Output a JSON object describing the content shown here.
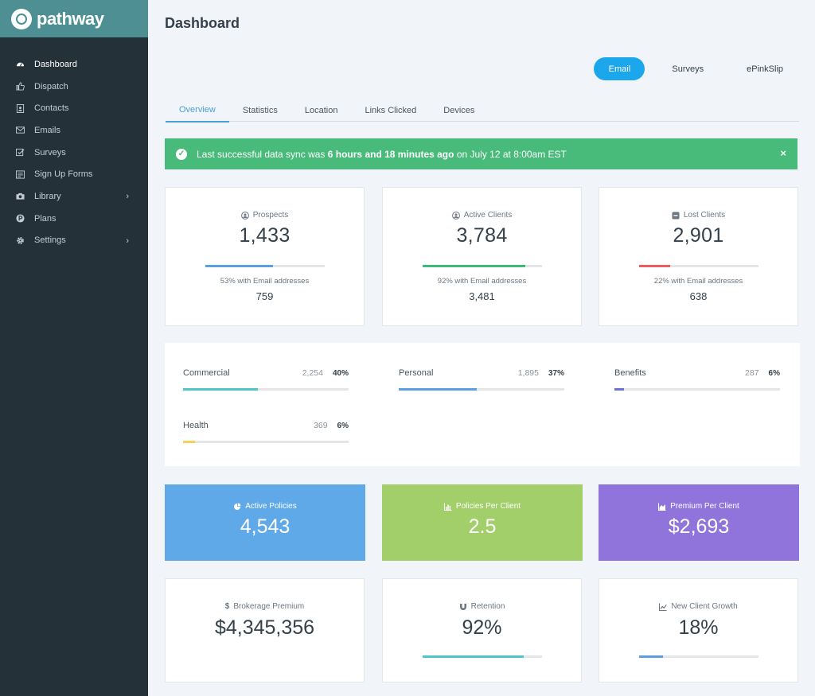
{
  "brand": {
    "name": "pathway"
  },
  "sidebar": {
    "items": [
      {
        "label": "Dashboard",
        "icon": "dashboard-icon"
      },
      {
        "label": "Dispatch",
        "icon": "thumbs-up-icon"
      },
      {
        "label": "Contacts",
        "icon": "contact-card-icon"
      },
      {
        "label": "Emails",
        "icon": "envelope-icon"
      },
      {
        "label": "Surveys",
        "icon": "checkbox-icon"
      },
      {
        "label": "Sign Up Forms",
        "icon": "form-icon"
      },
      {
        "label": "Library",
        "icon": "camera-icon"
      },
      {
        "label": "Plans",
        "icon": "plans-icon"
      },
      {
        "label": "Settings",
        "icon": "gear-icon"
      }
    ],
    "chevron": "›"
  },
  "header": {
    "title": "Dashboard"
  },
  "channel_toggle": {
    "email": "Email",
    "surveys": "Surveys",
    "epinkslip": "ePinkSlip"
  },
  "tabs": [
    "Overview",
    "Statistics",
    "Location",
    "Links Clicked",
    "Devices"
  ],
  "alert": {
    "prefix": "Last successful data sync was",
    "highlight": "6 hours and 18 minutes ago",
    "suffix": "on July 12 at 8:00am EST",
    "close": "×",
    "check": "✓"
  },
  "stats": [
    {
      "label": "Prospects",
      "value": "1,433",
      "sub": "53% with Email addresses",
      "sub_value": "759",
      "fill": 0.57,
      "color": "#5a9ee4"
    },
    {
      "label": "Active Clients",
      "value": "3,784",
      "sub": "92% with Email addresses",
      "sub_value": "3,481",
      "fill": 0.86,
      "color": "#3dbb7a"
    },
    {
      "label": "Lost Clients",
      "value": "2,901",
      "sub": "22% with Email addresses",
      "sub_value": "638",
      "fill": 0.26,
      "color": "#ee5b5b"
    }
  ],
  "segments": [
    {
      "name": "Commercial",
      "count": "2,254",
      "pct": "40%",
      "fill": 0.45,
      "color": "#4fc4c9"
    },
    {
      "name": "Personal",
      "count": "1,895",
      "pct": "37%",
      "fill": 0.47,
      "color": "#5a9ee4"
    },
    {
      "name": "Benefits",
      "count": "287",
      "pct": "6%",
      "fill": 0.06,
      "color": "#6a72d8"
    },
    {
      "name": "Health",
      "count": "369",
      "pct": "6%",
      "fill": 0.07,
      "color": "#f4d25a"
    }
  ],
  "color_cards": [
    {
      "label": "Active Policies",
      "value": "4,543",
      "color": "#5fa9e8",
      "icon": "pie-chart-icon"
    },
    {
      "label": "Policies Per Client",
      "value": "2.5",
      "color": "#a3cf6a",
      "icon": "bar-chart-icon"
    },
    {
      "label": "Premium Per Client",
      "value": "$2,693",
      "color": "#9074dc",
      "icon": "area-chart-icon"
    }
  ],
  "bottom_cards": [
    {
      "label": "Brokerage Premium",
      "value": "$4,345,356",
      "icon": "dollar-icon",
      "icon_text": "$"
    },
    {
      "label": "Retention",
      "value": "92%",
      "icon": "magnet-icon",
      "fill": 0.85,
      "color": "#4fc4c9"
    },
    {
      "label": "New Client Growth",
      "value": "18%",
      "icon": "line-chart-icon",
      "fill": 0.2,
      "color": "#5a9ee4"
    }
  ]
}
